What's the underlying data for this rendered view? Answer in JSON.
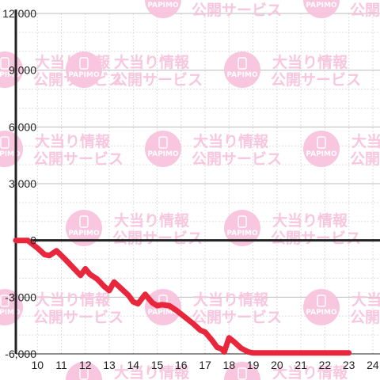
{
  "chart_data": {
    "type": "line",
    "title": "",
    "xlabel": "",
    "ylabel": "",
    "x_ticks": [
      10,
      11,
      12,
      13,
      14,
      15,
      16,
      17,
      18,
      19,
      20,
      21,
      22,
      23,
      24
    ],
    "y_ticks": [
      -6000,
      -3000,
      0,
      3000,
      6000,
      9000,
      12000
    ],
    "y_tick_labels": [
      "-6,000",
      "-3,000",
      "0",
      "3,000",
      "6,000",
      "9,000",
      "12,000"
    ],
    "xlim": [
      9.1,
      24.3
    ],
    "ylim": [
      -6000,
      12000
    ],
    "grid": true,
    "series": [
      {
        "color": "#e8263c",
        "x": [
          9.1,
          9.6,
          10.0,
          10.3,
          10.5,
          10.8,
          11.0,
          11.2,
          11.5,
          11.8,
          12.0,
          12.2,
          12.5,
          12.8,
          13.0,
          13.2,
          13.5,
          13.8,
          14.0,
          14.2,
          14.5,
          14.8,
          15.0,
          15.2,
          15.5,
          15.8,
          16.0,
          16.3,
          16.5,
          16.8,
          17.0,
          17.3,
          17.5,
          17.7,
          17.8,
          18.0,
          18.2,
          18.5,
          18.8,
          19.0,
          19.5,
          20.0,
          21.0,
          22.0,
          23.0
        ],
        "y": [
          0,
          0,
          -400,
          -750,
          -800,
          -550,
          -800,
          -1050,
          -1450,
          -1850,
          -1500,
          -1800,
          -2050,
          -2450,
          -2650,
          -2200,
          -2550,
          -2900,
          -3250,
          -3350,
          -2850,
          -3300,
          -3450,
          -3400,
          -3450,
          -3700,
          -3900,
          -4200,
          -4400,
          -4750,
          -4850,
          -5300,
          -5650,
          -5750,
          -5900,
          -5150,
          -5350,
          -5700,
          -5900,
          -5950,
          -5950,
          -5950,
          -5950,
          -5950,
          -5950
        ]
      }
    ]
  },
  "watermark": {
    "text1": "大当り情報",
    "text2": "公開サービス",
    "logo_text": "PAPIMO",
    "color": "#f8c4dd"
  },
  "colors": {
    "line": "#e8263c",
    "axis": "#222222",
    "grid_major": "#bbbbbb",
    "grid_minor": "#dddddd"
  }
}
